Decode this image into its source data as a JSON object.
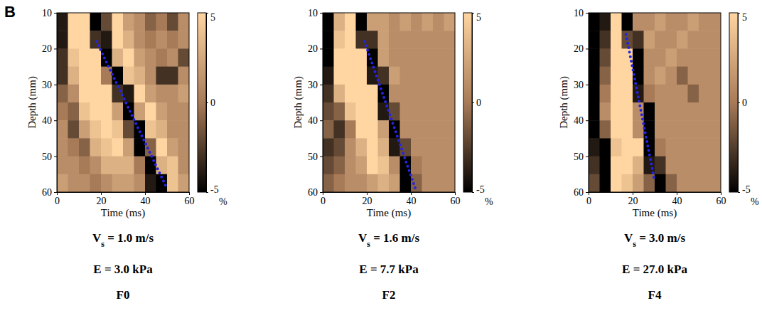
{
  "panel_label": "B",
  "chart_data": [
    {
      "type": "heatmap",
      "xlabel": "Time (ms)",
      "ylabel": "Depth (mm)",
      "xlim": [
        0,
        60
      ],
      "ylim": [
        10,
        60
      ],
      "xticks": [
        0,
        20,
        40,
        60
      ],
      "yticks": [
        10,
        20,
        30,
        40,
        50,
        60
      ],
      "x_edges": [
        0,
        5,
        10,
        15,
        20,
        25,
        30,
        35,
        40,
        45,
        50,
        55,
        60
      ],
      "y_edges": [
        10,
        15,
        20,
        25,
        30,
        35,
        40,
        45,
        50,
        55,
        60
      ],
      "cells": [
        [
          -4,
          5,
          5,
          -5,
          -2,
          5,
          2,
          1,
          -1,
          0,
          -2,
          1
        ],
        [
          -4,
          5,
          5,
          -3,
          -4,
          5,
          3,
          1,
          0,
          1,
          0,
          1
        ],
        [
          -3,
          4,
          5,
          5,
          -5,
          3,
          5,
          2,
          1,
          0,
          1,
          -2
        ],
        [
          -3,
          3,
          5,
          5,
          0,
          -5,
          4,
          3,
          1,
          -3,
          -3,
          1
        ],
        [
          -1,
          1,
          5,
          5,
          5,
          -3,
          -4,
          5,
          2,
          1,
          1,
          2
        ],
        [
          0,
          -1,
          4,
          5,
          5,
          2,
          -5,
          2,
          5,
          2,
          1,
          1
        ],
        [
          1,
          -2,
          2,
          4,
          5,
          4,
          -2,
          -5,
          4,
          3,
          1,
          1
        ],
        [
          1,
          0,
          -1,
          3,
          4,
          5,
          2,
          -5,
          -1,
          5,
          2,
          1
        ],
        [
          1,
          1,
          0,
          1,
          3,
          3,
          3,
          0,
          -5,
          3,
          4,
          1
        ],
        [
          2,
          1,
          1,
          0,
          1,
          2,
          2,
          1,
          -4,
          -5,
          4,
          2
        ]
      ],
      "clim": [
        -5,
        5
      ],
      "cticks": [
        -5,
        0,
        5
      ],
      "clabel": "%",
      "fit_line": {
        "x": [
          18,
          50
        ],
        "y": [
          18,
          59
        ],
        "color": "#2424e6",
        "line_style": "dotted"
      },
      "captions": [
        "Vs = 1.0 m/s",
        "E = 3.0 kPa",
        "F0"
      ]
    },
    {
      "type": "heatmap",
      "xlabel": "Time (ms)",
      "ylabel": "Depth (mm)",
      "xlim": [
        0,
        60
      ],
      "ylim": [
        10,
        60
      ],
      "xticks": [
        0,
        20,
        40,
        60
      ],
      "yticks": [
        10,
        20,
        30,
        40,
        50,
        60
      ],
      "x_edges": [
        0,
        5,
        10,
        15,
        20,
        25,
        30,
        35,
        40,
        45,
        50,
        55,
        60
      ],
      "y_edges": [
        10,
        15,
        20,
        25,
        30,
        35,
        40,
        45,
        50,
        55,
        60
      ],
      "cells": [
        [
          -5,
          3,
          5,
          -5,
          2,
          2,
          1,
          2,
          1,
          2,
          1,
          2
        ],
        [
          -5,
          4,
          5,
          -3,
          -3,
          2,
          1,
          1,
          1,
          1,
          1,
          1
        ],
        [
          -5,
          5,
          5,
          5,
          -5,
          2,
          1,
          1,
          1,
          1,
          1,
          1
        ],
        [
          -4,
          5,
          5,
          5,
          -4,
          -3,
          2,
          1,
          1,
          1,
          1,
          1
        ],
        [
          -3,
          3,
          5,
          5,
          5,
          -5,
          1,
          1,
          1,
          1,
          1,
          1
        ],
        [
          -2,
          -1,
          4,
          5,
          5,
          -4,
          -2,
          1,
          1,
          1,
          1,
          1
        ],
        [
          -1,
          -3,
          0,
          5,
          5,
          2,
          -5,
          1,
          1,
          1,
          1,
          1
        ],
        [
          -3,
          -2,
          1,
          3,
          5,
          3,
          -4,
          -2,
          1,
          1,
          1,
          1
        ],
        [
          -2,
          -1,
          1,
          2,
          5,
          4,
          1,
          -5,
          0,
          1,
          1,
          1
        ],
        [
          -1,
          0,
          1,
          1,
          2,
          3,
          2,
          -5,
          -1,
          1,
          1,
          1
        ]
      ],
      "clim": [
        -5,
        5
      ],
      "cticks": [
        -5,
        0,
        5
      ],
      "clabel": "%",
      "fit_line": {
        "x": [
          19,
          42
        ],
        "y": [
          18,
          59
        ],
        "color": "#2424e6",
        "line_style": "dotted"
      },
      "captions": [
        "Vs = 1.6 m/s",
        "E = 7.7 kPa",
        "F2"
      ]
    },
    {
      "type": "heatmap",
      "xlabel": "Time (ms)",
      "ylabel": "Depth (mm)",
      "xlim": [
        0,
        60
      ],
      "ylim": [
        10,
        60
      ],
      "xticks": [
        0,
        20,
        40,
        60
      ],
      "yticks": [
        10,
        20,
        30,
        40,
        50,
        60
      ],
      "x_edges": [
        0,
        5,
        10,
        15,
        20,
        25,
        30,
        35,
        40,
        45,
        50,
        55,
        60
      ],
      "y_edges": [
        10,
        15,
        20,
        25,
        30,
        35,
        40,
        45,
        50,
        55,
        60
      ],
      "cells": [
        [
          -5,
          -4,
          5,
          -5,
          1,
          1,
          2,
          1,
          1,
          2,
          1,
          1
        ],
        [
          -5,
          -3,
          5,
          -2,
          -3,
          2,
          1,
          1,
          2,
          1,
          1,
          1
        ],
        [
          -5,
          -2,
          5,
          5,
          -5,
          1,
          1,
          2,
          1,
          1,
          1,
          1
        ],
        [
          -5,
          -1,
          5,
          5,
          -5,
          1,
          2,
          1,
          -1,
          1,
          1,
          1
        ],
        [
          -5,
          0,
          5,
          5,
          -4,
          0,
          1,
          1,
          1,
          -1,
          1,
          1
        ],
        [
          -5,
          1,
          5,
          5,
          1,
          -5,
          1,
          1,
          1,
          1,
          1,
          1
        ],
        [
          -5,
          -1,
          5,
          5,
          1,
          -5,
          1,
          1,
          1,
          1,
          1,
          1
        ],
        [
          -4,
          -5,
          4,
          5,
          5,
          -5,
          0,
          1,
          1,
          1,
          1,
          1
        ],
        [
          -3,
          -5,
          5,
          5,
          3,
          -4,
          -3,
          1,
          1,
          1,
          1,
          1
        ],
        [
          -2,
          -5,
          5,
          4,
          2,
          -1,
          -5,
          -1,
          1,
          1,
          1,
          1
        ]
      ],
      "clim": [
        -5,
        5
      ],
      "cticks": [
        -5,
        0,
        5
      ],
      "clabel": "%",
      "fit_line": {
        "x": [
          17,
          30
        ],
        "y": [
          16,
          57
        ],
        "color": "#2424e6",
        "line_style": "dotted"
      },
      "captions": [
        "Vs = 3.0 m/s",
        "E = 27.0 kPa",
        "F4"
      ]
    }
  ]
}
